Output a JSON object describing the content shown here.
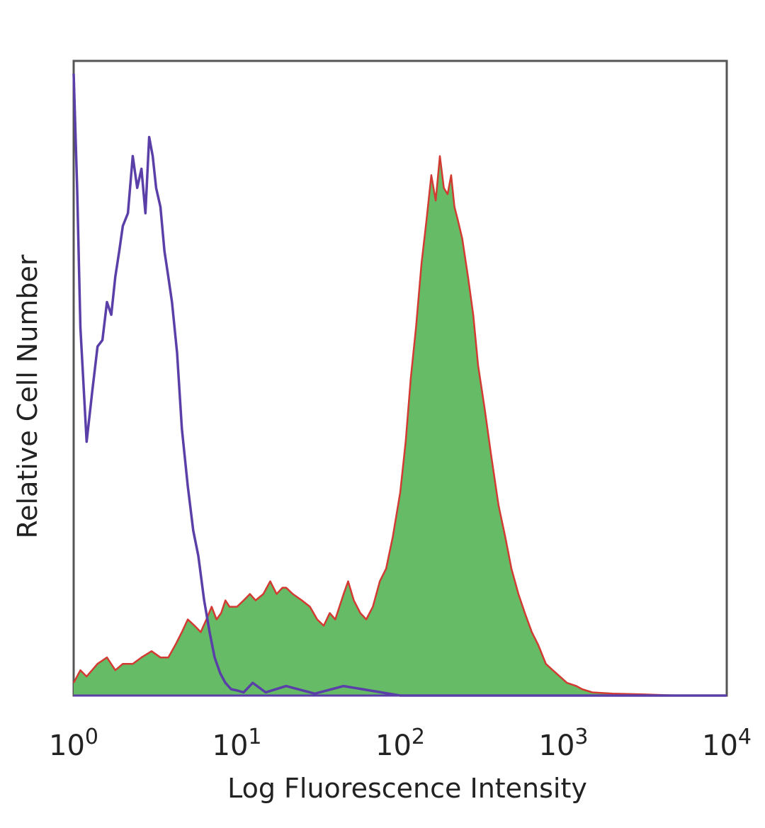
{
  "chart_data": {
    "type": "area",
    "xlabel": "Log Fluorescence Intensity",
    "ylabel": "Relative Cell Number",
    "x_scale": "log",
    "xlim": [
      1,
      10000
    ],
    "ylim": [
      0,
      100
    ],
    "grid": false,
    "x_ticks": [
      {
        "value": 1,
        "base": "10",
        "exp": "0"
      },
      {
        "value": 10,
        "base": "10",
        "exp": "1"
      },
      {
        "value": 100,
        "base": "10",
        "exp": "2"
      },
      {
        "value": 1000,
        "base": "10",
        "exp": "3"
      },
      {
        "value": 10000,
        "base": "10",
        "exp": "4"
      }
    ],
    "series": [
      {
        "style": "line",
        "color": "#5b3fa8",
        "x": [
          1.0,
          1.05,
          1.1,
          1.2,
          1.3,
          1.4,
          1.5,
          1.6,
          1.7,
          1.8,
          1.9,
          2.0,
          2.15,
          2.3,
          2.45,
          2.6,
          2.75,
          2.9,
          3.05,
          3.2,
          3.4,
          3.6,
          3.8,
          4.0,
          4.3,
          4.6,
          5.0,
          5.4,
          5.8,
          6.3,
          6.8,
          7.3,
          7.9,
          8.5,
          9.2,
          10.0,
          11.0,
          12.5,
          15.0,
          20.0,
          30.0,
          45.0,
          100.0,
          1000.0,
          10000.0
        ],
        "y": [
          98,
          80,
          58,
          40,
          48,
          55,
          56,
          62,
          60,
          66,
          70,
          74,
          76,
          85,
          80,
          83,
          76,
          88,
          85,
          80,
          77,
          70,
          66,
          62,
          54,
          42,
          33,
          26,
          22,
          15,
          10,
          6,
          3.5,
          2,
          1,
          0.8,
          0.5,
          2,
          0.5,
          1.5,
          0.3,
          1.5,
          0,
          0,
          0
        ]
      },
      {
        "style": "filled",
        "color": "#66bb66",
        "outline": "#d23a32",
        "x": [
          1.0,
          1.1,
          1.2,
          1.4,
          1.6,
          1.8,
          2.0,
          2.3,
          2.6,
          3.0,
          3.4,
          3.8,
          4.2,
          4.6,
          5.0,
          5.5,
          6.0,
          6.5,
          7.0,
          7.5,
          8.0,
          8.5,
          9.0,
          10.0,
          11.0,
          12.0,
          13.0,
          14.5,
          16.0,
          17.5,
          19.0,
          20.0,
          22.0,
          25.0,
          28.0,
          31.0,
          34.0,
          37.0,
          40.0,
          45.0,
          48.0,
          52.0,
          57.0,
          62.0,
          68.0,
          75.0,
          82.0,
          90.0,
          100.0,
          108.0,
          116.0,
          125.0,
          135.0,
          145.0,
          155.0,
          165.0,
          175.0,
          185.0,
          195.0,
          205.0,
          215.0,
          225.0,
          240.0,
          260.0,
          280.0,
          300.0,
          330.0,
          360.0,
          400.0,
          440.0,
          480.0,
          530.0,
          580.0,
          640.0,
          700.0,
          780.0,
          860.0,
          950.0,
          1050.0,
          1200.0,
          1300.0,
          1500.0,
          2000.0,
          3000.0,
          5000.0,
          10000.0
        ],
        "y": [
          2,
          4,
          3,
          5,
          6,
          4,
          5,
          5,
          6,
          7,
          6,
          6,
          8,
          10,
          12,
          11,
          10,
          12,
          14,
          12,
          13,
          15,
          14,
          14,
          15,
          16,
          15,
          16,
          18,
          16,
          17,
          17,
          16,
          15,
          14,
          12,
          11,
          13,
          12,
          16,
          18,
          15,
          13,
          12,
          14,
          18,
          20,
          25,
          32,
          40,
          50,
          58,
          68,
          75,
          82,
          78,
          85,
          80,
          79,
          82,
          77,
          75,
          72,
          66,
          60,
          52,
          45,
          38,
          30,
          25,
          20,
          16,
          13,
          10,
          8,
          5,
          4,
          3,
          2,
          1.5,
          1,
          0.5,
          0.3,
          0.2,
          0,
          0
        ]
      }
    ]
  }
}
